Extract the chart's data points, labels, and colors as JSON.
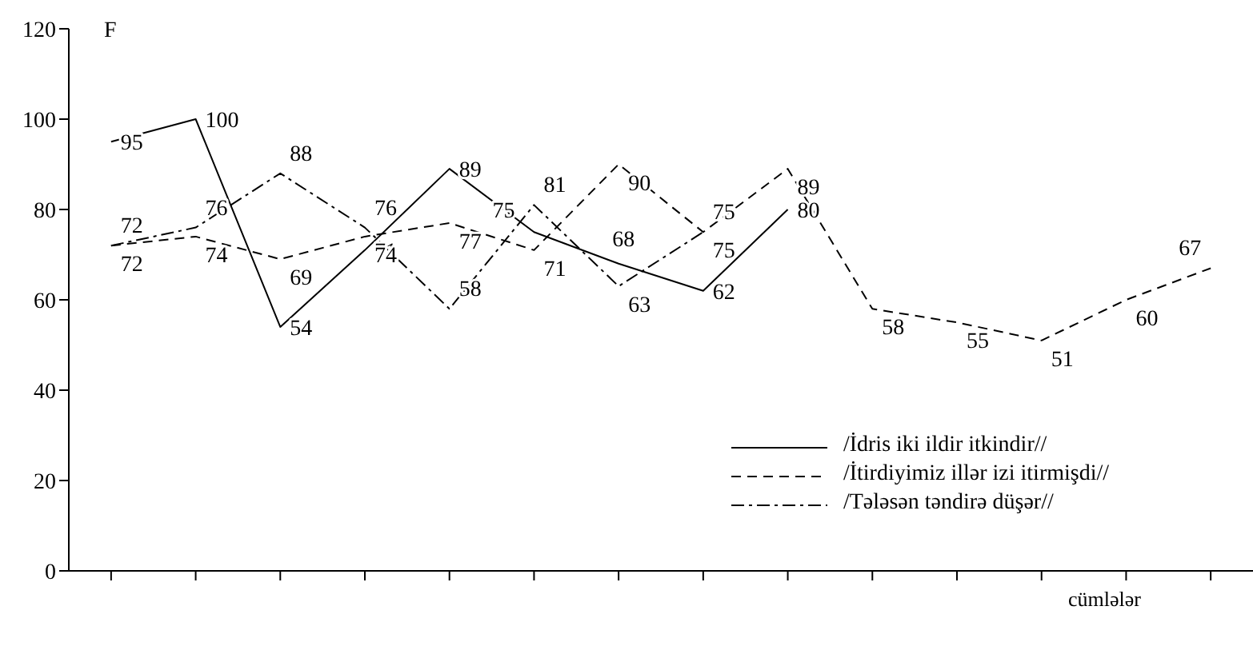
{
  "chart_data": {
    "type": "line",
    "ylabel": "F",
    "xlabel": "cümlələr",
    "categories": [
      null,
      null,
      null,
      null,
      null,
      null,
      null,
      null,
      null,
      null,
      null,
      null,
      null,
      null
    ],
    "series": [
      {
        "name": "/İdris iki ildir itkindir//",
        "color": "#000000",
        "line_style": "solid",
        "values": [
          95,
          100,
          54,
          71,
          89,
          75,
          68,
          62,
          80,
          null,
          null,
          null,
          null,
          null
        ]
      },
      {
        "name": "/İtirdiyimiz illər izi itirmişdi//",
        "color": "#000000",
        "line_style": "dashed",
        "values": [
          72,
          74,
          69,
          74,
          77,
          71,
          90,
          75,
          89,
          58,
          55,
          51,
          60,
          67
        ]
      },
      {
        "name": "/Tələsən təndirə düşər//",
        "color": "#000000",
        "line_style": "dashdot",
        "values": [
          72,
          76,
          88,
          76,
          58,
          81,
          63,
          75,
          null,
          null,
          null,
          null,
          null,
          null
        ]
      }
    ],
    "ylim": [
      0,
      120
    ],
    "yticks": [
      0,
      20,
      40,
      60,
      80,
      100,
      120
    ],
    "grid": false,
    "legend": "bottom right",
    "marker": "none",
    "data_labels": true
  }
}
